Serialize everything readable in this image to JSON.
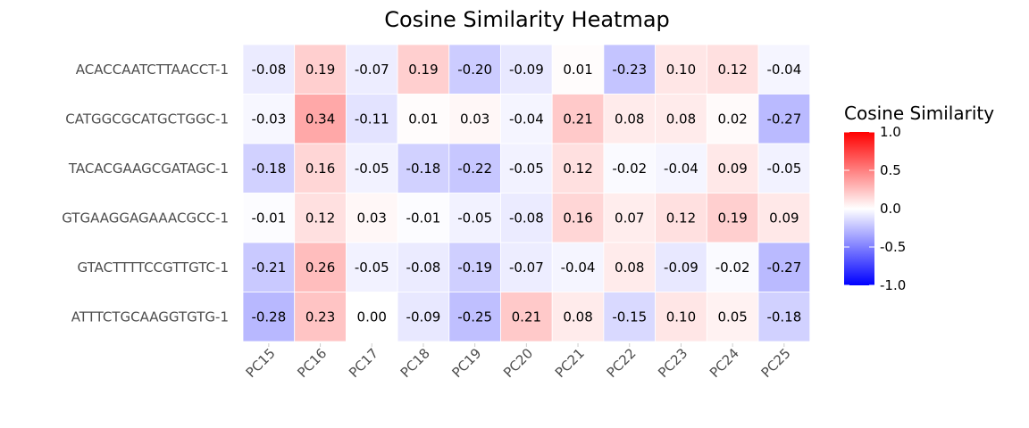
{
  "chart_data": {
    "type": "heatmap",
    "title": "Cosine Similarity Heatmap",
    "xlabel": "",
    "ylabel": "",
    "columns": [
      "PC15",
      "PC16",
      "PC17",
      "PC18",
      "PC19",
      "PC20",
      "PC21",
      "PC22",
      "PC23",
      "PC24",
      "PC25"
    ],
    "rows": [
      "ACACCAATCTTAACCT-1",
      "CATGGCGCATGCTGGC-1",
      "TACACGAAGCGATAGC-1",
      "GTGAAGGAGAAACGCC-1",
      "GTACTTTTCCGTTGTC-1",
      "ATTTCTGCAAGGTGTG-1"
    ],
    "values": [
      [
        -0.08,
        0.19,
        -0.07,
        0.19,
        -0.2,
        -0.09,
        0.01,
        -0.23,
        0.1,
        0.12,
        -0.04
      ],
      [
        -0.03,
        0.34,
        -0.11,
        0.01,
        0.03,
        -0.04,
        0.21,
        0.08,
        0.08,
        0.02,
        -0.27
      ],
      [
        -0.18,
        0.16,
        -0.05,
        -0.18,
        -0.22,
        -0.05,
        0.12,
        -0.02,
        -0.04,
        0.09,
        -0.05
      ],
      [
        -0.01,
        0.12,
        0.03,
        -0.01,
        -0.05,
        -0.08,
        0.16,
        0.07,
        0.12,
        0.19,
        0.09
      ],
      [
        -0.21,
        0.26,
        -0.05,
        -0.08,
        -0.19,
        -0.07,
        -0.04,
        0.08,
        -0.09,
        -0.02,
        -0.27
      ],
      [
        -0.28,
        0.23,
        0.0,
        -0.09,
        -0.25,
        0.21,
        0.08,
        -0.15,
        0.1,
        0.05,
        -0.18
      ]
    ],
    "labels": [
      [
        "-0.08",
        "0.19",
        "-0.07",
        "0.19",
        "-0.20",
        "-0.09",
        "0.01",
        "-0.23",
        "0.10",
        "0.12",
        "-0.04"
      ],
      [
        "-0.03",
        "0.34",
        "-0.11",
        "0.01",
        "0.03",
        "-0.04",
        "0.21",
        "0.08",
        "0.08",
        "0.02",
        "-0.27"
      ],
      [
        "-0.18",
        "0.16",
        "-0.05",
        "-0.18",
        "-0.22",
        "-0.05",
        "0.12",
        "-0.02",
        "-0.04",
        "0.09",
        "-0.05"
      ],
      [
        "-0.01",
        "0.12",
        "0.03",
        "-0.01",
        "-0.05",
        "-0.08",
        "0.16",
        "0.07",
        "0.12",
        "0.19",
        "0.09"
      ],
      [
        "-0.21",
        "0.26",
        "-0.05",
        "-0.08",
        "-0.19",
        "-0.07",
        "-0.04",
        "0.08",
        "-0.09",
        "-0.02",
        "-0.27"
      ],
      [
        "-0.28",
        "0.23",
        "0.00",
        "-0.09",
        "-0.25",
        "0.21",
        "0.08",
        "-0.15",
        "0.10",
        "0.05",
        "-0.18"
      ]
    ],
    "color_scale": {
      "low": "#0000ff",
      "mid": "#ffffff",
      "high": "#ff0000",
      "range": [
        -1.0,
        1.0
      ]
    },
    "legend": {
      "title": "Cosine Similarity",
      "placement": "right",
      "ticks": [
        "1.0",
        "0.5",
        "0.0",
        "-0.5",
        "-1.0"
      ],
      "tick_values": [
        1.0,
        0.5,
        0.0,
        -0.5,
        -1.0
      ]
    },
    "grid": false
  }
}
